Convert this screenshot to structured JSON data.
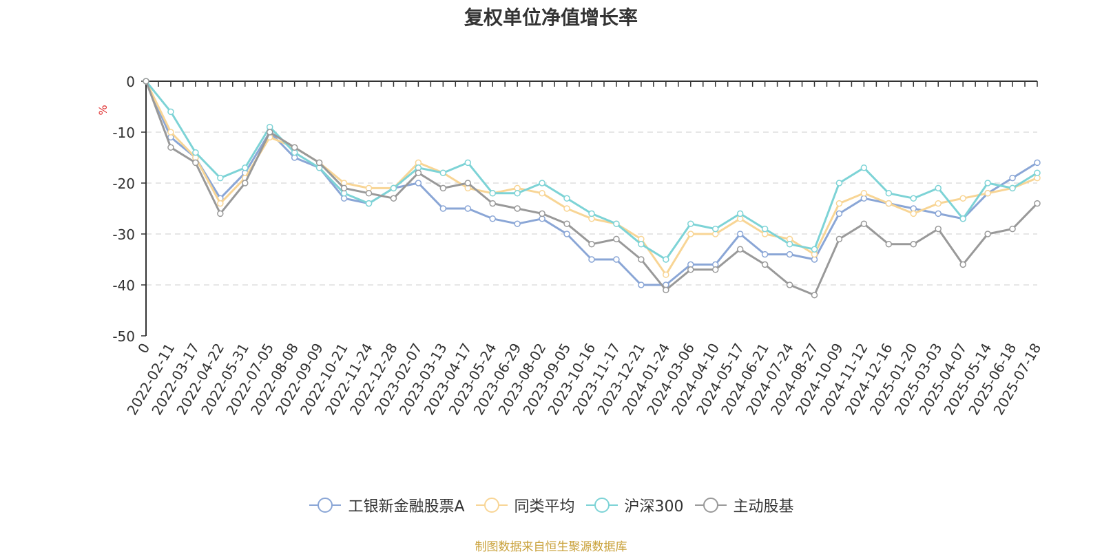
{
  "chart_data": {
    "type": "line",
    "title": "复权单位净值增长率",
    "ylabel": "%",
    "ylim": [
      -50,
      0
    ],
    "yticks": [
      0,
      -10,
      -20,
      -30,
      -40,
      -50
    ],
    "grid": true,
    "legend_position": "bottom-center",
    "x_origin_label": "0",
    "x_tick_labels": [
      "2022-02-11",
      "2022-03-17",
      "2022-04-22",
      "2022-05-31",
      "2022-07-05",
      "2022-08-08",
      "2022-09-09",
      "2022-10-21",
      "2022-11-24",
      "2022-12-28",
      "2023-02-07",
      "2023-03-13",
      "2023-04-17",
      "2023-05-24",
      "2023-06-29",
      "2023-08-02",
      "2023-09-05",
      "2023-10-16",
      "2023-11-17",
      "2023-12-21",
      "2024-01-24",
      "2024-03-06",
      "2024-04-10",
      "2024-05-17",
      "2024-06-21",
      "2024-07-24",
      "2024-08-27",
      "2024-10-09",
      "2024-11-12",
      "2024-12-16",
      "2025-01-20",
      "2025-03-03",
      "2025-04-07",
      "2025-05-14",
      "2025-06-18",
      "2025-07-18"
    ],
    "x": [
      "0",
      "2022-02-11",
      "2022-03-17",
      "2022-04-22",
      "2022-05-31",
      "2022-07-05",
      "2022-08-08",
      "2022-09-09",
      "2022-10-21",
      "2022-11-24",
      "2022-12-28",
      "2023-02-07",
      "2023-03-13",
      "2023-04-17",
      "2023-05-24",
      "2023-06-29",
      "2023-08-02",
      "2023-09-05",
      "2023-10-16",
      "2023-11-17",
      "2023-12-21",
      "2024-01-24",
      "2024-03-06",
      "2024-04-10",
      "2024-05-17",
      "2024-06-21",
      "2024-07-24",
      "2024-08-27",
      "2024-10-09",
      "2024-11-12",
      "2024-12-16",
      "2025-01-20",
      "2025-03-03",
      "2025-04-07",
      "2025-05-14",
      "2025-06-18",
      "2025-07-18"
    ],
    "series": [
      {
        "name": "工银新金融股票A",
        "color": "#8aa6d6",
        "values": [
          0,
          -11,
          -15,
          -23,
          -18,
          -10,
          -15,
          -17,
          -23,
          -24,
          -21,
          -20,
          -25,
          -25,
          -27,
          -28,
          -27,
          -30,
          -35,
          -35,
          -40,
          -40,
          -36,
          -36,
          -30,
          -34,
          -34,
          -35,
          -26,
          -23,
          -24,
          -25,
          -26,
          -27,
          -22,
          -19,
          -16
        ]
      },
      {
        "name": "同类平均",
        "color": "#f8d595",
        "values": [
          0,
          -10,
          -15,
          -24,
          -19,
          -11,
          -13,
          -16,
          -20,
          -21,
          -21,
          -16,
          -18,
          -21,
          -22,
          -21,
          -22,
          -25,
          -27,
          -28,
          -31,
          -38,
          -30,
          -30,
          -27,
          -30,
          -31,
          -34,
          -24,
          -22,
          -24,
          -26,
          -24,
          -23,
          -22,
          -21,
          -19
        ]
      },
      {
        "name": "沪深300",
        "color": "#7dd3d6",
        "values": [
          0,
          -6,
          -14,
          -19,
          -17,
          -9,
          -14,
          -17,
          -22,
          -24,
          -21,
          -17,
          -18,
          -16,
          -22,
          -22,
          -20,
          -23,
          -26,
          -28,
          -32,
          -35,
          -28,
          -29,
          -26,
          -29,
          -32,
          -33,
          -20,
          -17,
          -22,
          -23,
          -21,
          -27,
          -20,
          -21,
          -18
        ]
      },
      {
        "name": "主动股基",
        "color": "#999999",
        "values": [
          0,
          -13,
          -16,
          -26,
          -20,
          -10,
          -13,
          -16,
          -21,
          -22,
          -23,
          -18,
          -21,
          -20,
          -24,
          -25,
          -26,
          -28,
          -32,
          -31,
          -35,
          -41,
          -37,
          -37,
          -33,
          -36,
          -40,
          -42,
          -31,
          -28,
          -32,
          -32,
          -29,
          -36,
          -30,
          -29,
          -24
        ]
      }
    ]
  },
  "source_note": "制图数据来自恒生聚源数据库"
}
